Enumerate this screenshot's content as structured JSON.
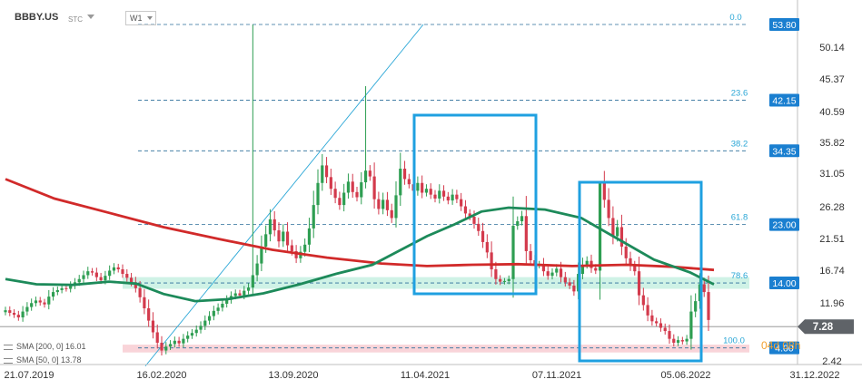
{
  "header": {
    "symbol": "BBBY.US",
    "stc_label": "STC",
    "timeframe": "W1"
  },
  "legend": {
    "sma200": "SMA [200, 0] 16.01",
    "sma50": "SMA [50, 0] 13.78"
  },
  "watermark": "04d 08h",
  "colors": {
    "up": "#2e9e52",
    "down": "#d33a4c",
    "sma200": "#d12a2a",
    "sma50": "#1d8a5a",
    "fib": "#29a6d6",
    "box": "#1fa0e0",
    "price_tag": "#5f6368",
    "tag": "#1a7fd0"
  },
  "chart_data": {
    "type": "candlestick",
    "x_ticks": [
      "21.07.2019",
      "16.02.2020",
      "13.09.2020",
      "11.04.2021",
      "07.11.2021",
      "05.06.2022",
      "31.12.2022"
    ],
    "y_ticks": [
      50.14,
      45.37,
      40.59,
      35.82,
      31.05,
      26.28,
      21.51,
      16.74,
      11.96,
      2.42
    ],
    "ylim": [
      2.42,
      53.8
    ],
    "fib_levels": [
      {
        "label": "0.0",
        "value": 53.8
      },
      {
        "label": "23.6",
        "value": 42.15
      },
      {
        "label": "38.2",
        "value": 34.35
      },
      {
        "label": "61.8",
        "value": 23.0
      },
      {
        "label": "78.6",
        "value": 14.0
      },
      {
        "label": "100.0",
        "value": 4.0
      }
    ],
    "current_price": 7.28,
    "series": [
      {
        "name": "SMA [200, 0]",
        "last": 16.01
      },
      {
        "name": "SMA [50, 0]",
        "last": 13.78
      }
    ]
  }
}
